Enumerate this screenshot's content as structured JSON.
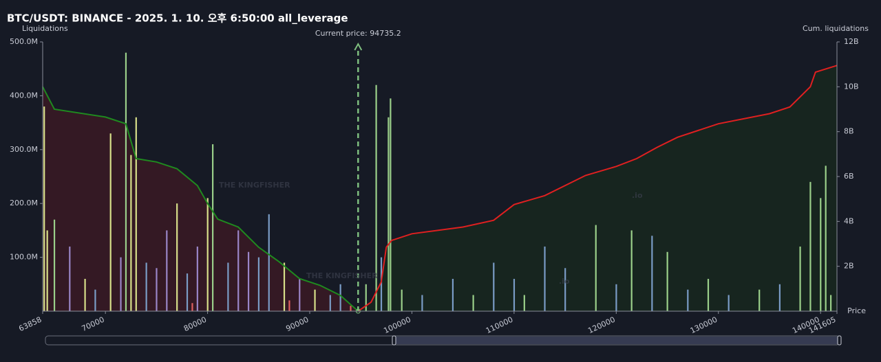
{
  "chart_data": {
    "type": "liquidation-map",
    "title": "BTC/USDT: BINANCE - 2025. 1. 10. 오후 6:50:00 all_leverage",
    "y_label": "Liquidations",
    "y2_label": "Cum. liquidations",
    "x_label": "Price",
    "annotation": "Current price: 94735.2",
    "current_price": 94735.2,
    "watermarks": [
      "THE KINGFISHER",
      ".io"
    ],
    "xlim": [
      63858,
      141605
    ],
    "xticks": [
      63858,
      70000,
      80000,
      90000,
      100000,
      110000,
      120000,
      130000,
      140000,
      141605
    ],
    "ylim": [
      0,
      500000000
    ],
    "yticks": [
      {
        "value": 100000000,
        "label": "100.0M"
      },
      {
        "value": 200000000,
        "label": "200.0M"
      },
      {
        "value": 300000000,
        "label": "300.0M"
      },
      {
        "value": 400000000,
        "label": "400.0M"
      },
      {
        "value": 500000000,
        "label": "500.0M"
      }
    ],
    "y2lim": [
      0,
      12000000000
    ],
    "y2ticks": [
      {
        "value": 2000000000,
        "label": "2B"
      },
      {
        "value": 4000000000,
        "label": "4B"
      },
      {
        "value": 6000000000,
        "label": "6B"
      },
      {
        "value": 8000000000,
        "label": "8B"
      },
      {
        "value": 10000000000,
        "label": "10B"
      },
      {
        "value": 12000000000,
        "label": "12B"
      }
    ],
    "bars": {
      "x": [
        64000,
        64300,
        65000,
        66500,
        68000,
        69000,
        70500,
        71500,
        72000,
        72500,
        73000,
        74000,
        75000,
        76000,
        77000,
        78000,
        78500,
        79000,
        80000,
        80500,
        82000,
        83000,
        84000,
        85000,
        86000,
        87500,
        88000,
        89000,
        90500,
        92000,
        93000,
        94000,
        95500,
        96500,
        97000,
        97700,
        97900,
        99000,
        101000,
        104000,
        106000,
        108000,
        110000,
        111000,
        113000,
        115000,
        118000,
        120000,
        121500,
        123500,
        125000,
        127000,
        129000,
        131000,
        134000,
        136000,
        138000,
        139000,
        140000,
        140500,
        141000
      ],
      "values": [
        380000000,
        150000000,
        170000000,
        120000000,
        60000000,
        40000000,
        330000000,
        100000000,
        480000000,
        290000000,
        360000000,
        90000000,
        80000000,
        150000000,
        200000000,
        70000000,
        15000000,
        120000000,
        210000000,
        310000000,
        90000000,
        150000000,
        110000000,
        100000000,
        180000000,
        90000000,
        20000000,
        60000000,
        40000000,
        30000000,
        50000000,
        10000000,
        50000000,
        420000000,
        100000000,
        360000000,
        395000000,
        40000000,
        30000000,
        60000000,
        30000000,
        90000000,
        60000000,
        30000000,
        120000000,
        80000000,
        160000000,
        50000000,
        150000000,
        140000000,
        110000000,
        40000000,
        60000000,
        30000000,
        40000000,
        50000000,
        120000000,
        240000000,
        210000000,
        270000000,
        30000000
      ],
      "colors": [
        "#d8e08a",
        "#d8e08a",
        "#9bd08a",
        "#9a86c8",
        "#d8e08a",
        "#7a9cc6",
        "#d8e08a",
        "#9a86c8",
        "#9bd08a",
        "#d8e08a",
        "#d8e08a",
        "#7a9cc6",
        "#9a86c8",
        "#9a86c8",
        "#d8e08a",
        "#7a9cc6",
        "#e06060",
        "#9a86c8",
        "#d8e08a",
        "#9bd08a",
        "#7a9cc6",
        "#9a86c8",
        "#9a86c8",
        "#7a9cc6",
        "#7a9cc6",
        "#d8e08a",
        "#e06060",
        "#9a86c8",
        "#d8e08a",
        "#7a9cc6",
        "#7a9cc6",
        "#e06060",
        "#9bd08a",
        "#9bd08a",
        "#7a9cc6",
        "#9bd08a",
        "#9bd08a",
        "#9bd08a",
        "#7a9cc6",
        "#7a9cc6",
        "#9bd08a",
        "#7a9cc6",
        "#7a9cc6",
        "#9bd08a",
        "#7a9cc6",
        "#7a9cc6",
        "#9bd08a",
        "#7a9cc6",
        "#9bd08a",
        "#7a9cc6",
        "#9bd08a",
        "#7a9cc6",
        "#9bd08a",
        "#7a9cc6",
        "#9bd08a",
        "#7a9cc6",
        "#9bd08a",
        "#9bd08a",
        "#9bd08a",
        "#9bd08a",
        "#9bd08a"
      ]
    },
    "lines": [
      {
        "color": "#1f8a1f",
        "fill": "#3a1a24",
        "axis": "y2",
        "x": [
          63858,
          65000,
          70000,
          72000,
          73000,
          75000,
          77000,
          79000,
          80000,
          81000,
          83000,
          85000,
          87000,
          89000,
          91000,
          93000,
          94735.2
        ],
        "values": [
          10000000000,
          9000000000,
          8650000000,
          8350000000,
          6800000000,
          6650000000,
          6350000000,
          5600000000,
          4800000000,
          4100000000,
          3750000000,
          2850000000,
          2200000000,
          1450000000,
          1150000000,
          700000000,
          0
        ]
      },
      {
        "color": "#e02020",
        "fill": "#18281e",
        "axis": "y2",
        "x": [
          94735.2,
          96000,
          97000,
          97500,
          98000,
          100000,
          105000,
          108000,
          110000,
          113000,
          117000,
          120000,
          122000,
          124000,
          126000,
          128000,
          130000,
          135000,
          137000,
          138000,
          139000,
          139500,
          141605
        ],
        "values": [
          0,
          400000000,
          1300000000,
          2850000000,
          3150000000,
          3450000000,
          3750000000,
          4050000000,
          4750000000,
          5150000000,
          6050000000,
          6450000000,
          6800000000,
          7300000000,
          7750000000,
          8050000000,
          8350000000,
          8800000000,
          9100000000,
          9550000000,
          10000000000,
          10650000000,
          10950000000
        ]
      }
    ]
  }
}
